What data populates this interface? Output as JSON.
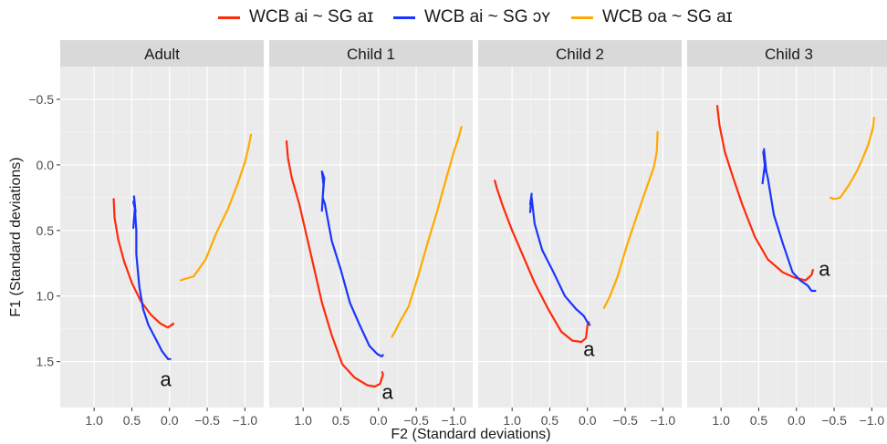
{
  "chart_data": {
    "type": "line",
    "xlabel": "F2 (Standard deviations)",
    "ylabel": "F1 (Standard deviations)",
    "x_reversed": true,
    "y_reversed": true,
    "xlim": [
      1.45,
      -1.25
    ],
    "ylim": [
      -0.75,
      1.85
    ],
    "xticks": [
      1.0,
      0.5,
      0.0,
      -0.5,
      -1.0
    ],
    "xtick_labels": [
      "1.0",
      "0.5",
      "0.0",
      "−0.5",
      "−1.0"
    ],
    "yticks": [
      -0.5,
      0.0,
      0.5,
      1.0,
      1.5
    ],
    "ytick_labels": [
      "−0.5",
      "0.0",
      "0.5",
      "1.0",
      "1.5"
    ],
    "grid": true,
    "legend_position": "top",
    "series_styles": [
      {
        "name": "WCB ai ~ SG aɪ",
        "color": "#ff2a0a"
      },
      {
        "name": "WCB ai ~ SG ɔʏ",
        "color": "#1a35ff"
      },
      {
        "name": "WCB oa ~ SG aɪ",
        "color": "#ffaa00"
      }
    ],
    "panels": [
      {
        "title": "Adult",
        "annotation": {
          "text": "a",
          "x": 0.05,
          "y": 1.63
        },
        "series": [
          {
            "name": "WCB ai ~ SG aɪ",
            "x": [
              0.74,
              0.73,
              0.68,
              0.6,
              0.5,
              0.38,
              0.25,
              0.12,
              0.02,
              -0.05,
              -0.04
            ],
            "y": [
              0.26,
              0.4,
              0.57,
              0.74,
              0.9,
              1.04,
              1.14,
              1.21,
              1.24,
              1.21,
              1.22
            ]
          },
          {
            "name": "WCB ai ~ SG ɔʏ",
            "x": [
              0.48,
              0.46,
              0.48,
              0.45,
              0.47,
              0.44,
              0.44,
              0.4,
              0.35,
              0.28,
              0.18,
              0.1,
              0.02,
              -0.01
            ],
            "y": [
              0.48,
              0.33,
              0.28,
              0.36,
              0.24,
              0.5,
              0.68,
              0.93,
              1.1,
              1.22,
              1.33,
              1.42,
              1.48,
              1.48
            ]
          },
          {
            "name": "WCB oa ~ SG aɪ",
            "x": [
              -0.15,
              -0.2,
              -0.32,
              -0.48,
              -0.62,
              -0.78,
              -0.9,
              -1.0,
              -1.05,
              -1.08
            ],
            "y": [
              0.88,
              0.87,
              0.85,
              0.72,
              0.52,
              0.33,
              0.15,
              -0.02,
              -0.14,
              -0.23
            ]
          }
        ]
      },
      {
        "title": "Child 1",
        "annotation": {
          "text": "a",
          "x": -0.12,
          "y": 1.73
        },
        "series": [
          {
            "name": "WCB ai ~ SG aɪ",
            "x": [
              1.22,
              1.2,
              1.15,
              1.05,
              0.95,
              0.85,
              0.75,
              0.62,
              0.48,
              0.32,
              0.15,
              0.05,
              -0.02,
              -0.06,
              -0.05
            ],
            "y": [
              -0.18,
              -0.05,
              0.1,
              0.3,
              0.55,
              0.8,
              1.05,
              1.3,
              1.52,
              1.62,
              1.68,
              1.69,
              1.67,
              1.6,
              1.58
            ]
          },
          {
            "name": "WCB ai ~ SG ɔʏ",
            "x": [
              0.75,
              0.73,
              0.75,
              0.72,
              0.74,
              0.71,
              0.62,
              0.5,
              0.38,
              0.25,
              0.12,
              0.02,
              -0.04,
              -0.06
            ],
            "y": [
              0.35,
              0.15,
              0.05,
              0.1,
              0.25,
              0.3,
              0.58,
              0.8,
              1.05,
              1.22,
              1.38,
              1.44,
              1.46,
              1.45
            ]
          },
          {
            "name": "WCB oa ~ SG aɪ",
            "x": [
              -0.18,
              -0.22,
              -0.28,
              -0.4,
              -0.52,
              -0.65,
              -0.78,
              -0.9,
              -1.0,
              -1.07,
              -1.1
            ],
            "y": [
              1.31,
              1.27,
              1.2,
              1.08,
              0.86,
              0.6,
              0.35,
              0.1,
              -0.1,
              -0.22,
              -0.29
            ]
          }
        ]
      },
      {
        "title": "Child 2",
        "annotation": {
          "text": "a",
          "x": -0.02,
          "y": 1.4
        },
        "series": [
          {
            "name": "WCB ai ~ SG aɪ",
            "x": [
              1.23,
              1.2,
              1.12,
              1.0,
              0.85,
              0.7,
              0.52,
              0.35,
              0.2,
              0.08,
              0.02,
              0.0,
              -0.02
            ],
            "y": [
              0.12,
              0.18,
              0.32,
              0.5,
              0.7,
              0.9,
              1.1,
              1.27,
              1.34,
              1.35,
              1.32,
              1.22,
              1.2
            ]
          },
          {
            "name": "WCB ai ~ SG ɔʏ",
            "x": [
              0.76,
              0.74,
              0.76,
              0.74,
              0.7,
              0.6,
              0.45,
              0.3,
              0.15,
              0.05,
              0.0,
              -0.03
            ],
            "y": [
              0.3,
              0.22,
              0.36,
              0.25,
              0.45,
              0.65,
              0.82,
              1.0,
              1.1,
              1.15,
              1.2,
              1.22
            ]
          },
          {
            "name": "WCB oa ~ SG aɪ",
            "x": [
              -0.22,
              -0.3,
              -0.4,
              -0.52,
              -0.65,
              -0.78,
              -0.88,
              -0.92,
              -0.93
            ],
            "y": [
              1.09,
              1.0,
              0.85,
              0.62,
              0.4,
              0.18,
              0.02,
              -0.1,
              -0.25
            ]
          }
        ]
      },
      {
        "title": "Child 3",
        "annotation": {
          "text": "a",
          "x": -0.37,
          "y": 0.79
        },
        "series": [
          {
            "name": "WCB ai ~ SG aɪ",
            "x": [
              1.05,
              1.02,
              0.95,
              0.85,
              0.72,
              0.55,
              0.38,
              0.18,
              0.02,
              -0.12,
              -0.2,
              -0.22
            ],
            "y": [
              -0.45,
              -0.3,
              -0.1,
              0.08,
              0.3,
              0.55,
              0.72,
              0.82,
              0.86,
              0.88,
              0.84,
              0.8
            ]
          },
          {
            "name": "WCB ai ~ SG ɔʏ",
            "x": [
              0.45,
              0.42,
              0.44,
              0.41,
              0.43,
              0.4,
              0.38,
              0.3,
              0.18,
              0.05,
              -0.05,
              -0.15,
              -0.2,
              -0.25
            ],
            "y": [
              0.14,
              0.0,
              -0.1,
              0.05,
              -0.12,
              0.05,
              0.1,
              0.38,
              0.6,
              0.82,
              0.88,
              0.92,
              0.96,
              0.96
            ]
          },
          {
            "name": "WCB oa ~ SG aɪ",
            "x": [
              -0.45,
              -0.5,
              -0.58,
              -0.7,
              -0.8,
              -0.88,
              -0.95,
              -1.0,
              -1.02,
              -1.03
            ],
            "y": [
              0.25,
              0.26,
              0.25,
              0.15,
              0.05,
              -0.05,
              -0.15,
              -0.25,
              -0.3,
              -0.36
            ]
          }
        ]
      }
    ]
  }
}
